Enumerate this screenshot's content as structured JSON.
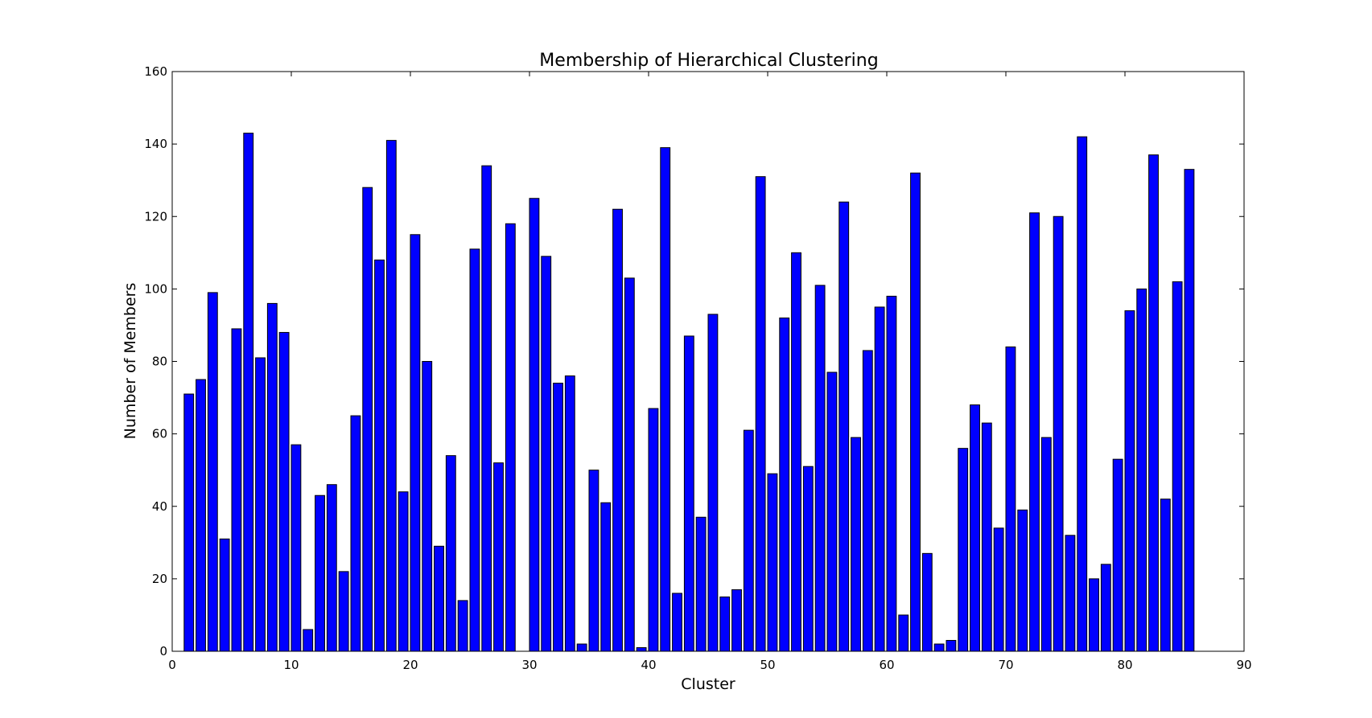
{
  "chart_data": {
    "type": "bar",
    "title": "Membership of Hierarchical Clustering",
    "xlabel": "Cluster",
    "ylabel": "Number of Members",
    "xlim": [
      0,
      90
    ],
    "ylim": [
      0,
      160
    ],
    "xticks": [
      0,
      10,
      20,
      30,
      40,
      50,
      60,
      70,
      80,
      90
    ],
    "yticks": [
      0,
      20,
      40,
      60,
      80,
      100,
      120,
      140,
      160
    ],
    "bar_width": 0.8,
    "bar_color": "#0000ff",
    "grid": false,
    "legend": "none",
    "x": [
      1,
      2,
      3,
      4,
      5,
      6,
      7,
      8,
      9,
      10,
      11,
      12,
      13,
      14,
      15,
      16,
      17,
      18,
      19,
      20,
      21,
      22,
      23,
      24,
      25,
      26,
      27,
      28,
      29,
      30,
      31,
      32,
      33,
      34,
      35,
      36,
      37,
      38,
      39,
      40,
      41,
      42,
      43,
      44,
      45,
      46,
      47,
      48,
      49,
      50,
      51,
      52,
      53,
      54,
      55,
      56,
      57,
      58,
      59,
      60,
      61,
      62,
      63,
      64,
      65,
      66,
      67,
      68,
      69,
      70,
      71,
      72,
      73,
      74,
      75,
      76,
      77,
      78,
      79,
      80,
      81,
      82,
      83,
      84,
      85
    ],
    "values": [
      71,
      75,
      99,
      31,
      89,
      143,
      81,
      96,
      88,
      57,
      6,
      43,
      46,
      22,
      65,
      128,
      108,
      141,
      44,
      115,
      80,
      29,
      54,
      14,
      111,
      134,
      52,
      118,
      0,
      125,
      109,
      74,
      76,
      2,
      50,
      41,
      122,
      103,
      1,
      67,
      139,
      16,
      87,
      37,
      93,
      15,
      17,
      61,
      131,
      49,
      92,
      110,
      51,
      101,
      77,
      124,
      59,
      83,
      95,
      98,
      10,
      132,
      27,
      2,
      3,
      56,
      68,
      63,
      34,
      84,
      39,
      121,
      59,
      120,
      32,
      142,
      20,
      24,
      53,
      94,
      100,
      137,
      42,
      102,
      133
    ]
  }
}
